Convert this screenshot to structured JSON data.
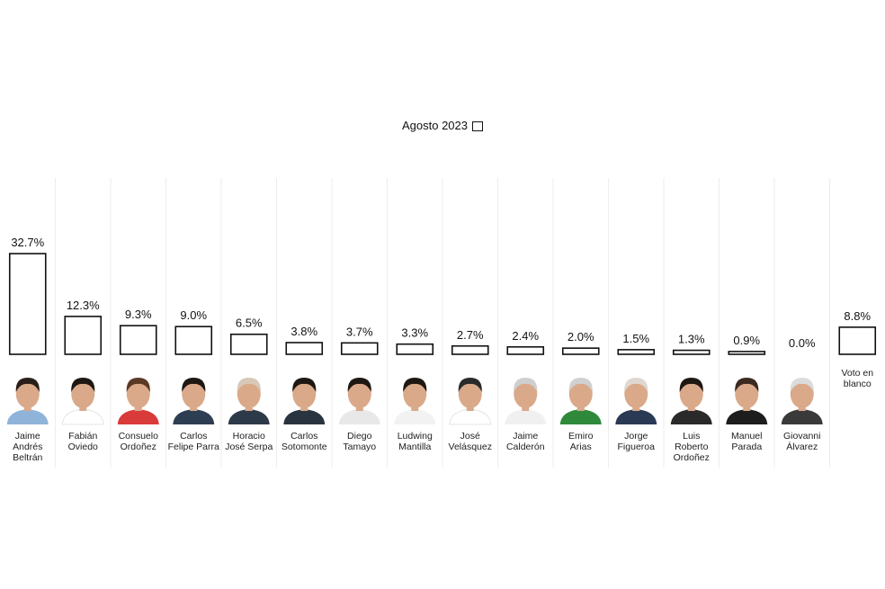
{
  "chart_data": {
    "type": "bar",
    "legend": {
      "position": "top-center"
    },
    "series": [
      {
        "name": "Agosto 2023",
        "values": [
          32.7,
          12.3,
          9.3,
          9.0,
          6.5,
          3.8,
          3.7,
          3.3,
          2.7,
          2.4,
          2.0,
          1.5,
          1.3,
          0.9,
          0.0,
          8.8
        ],
        "labels": [
          "32.7%",
          "12.3%",
          "9.3%",
          "9.0%",
          "6.5%",
          "3.8%",
          "3.7%",
          "3.3%",
          "2.7%",
          "2.4%",
          "2.0%",
          "1.5%",
          "1.3%",
          "0.9%",
          "0.0%",
          "8.8%"
        ]
      }
    ],
    "categories": [
      [
        "Jaime",
        "Andrés",
        "Beltrán"
      ],
      [
        "Fabián",
        "Oviedo"
      ],
      [
        "Consuelo",
        "Ordoñez"
      ],
      [
        "Carlos",
        "Felipe Parra"
      ],
      [
        "Horacio",
        "José Serpa"
      ],
      [
        "Carlos",
        "Sotomonte"
      ],
      [
        "Diego",
        "Tamayo"
      ],
      [
        "Ludwing",
        "Mantilla"
      ],
      [
        "José",
        "Velásquez"
      ],
      [
        "Jaime",
        "Calderón"
      ],
      [
        "Emiro",
        "Arias"
      ],
      [
        "Jorge",
        "Figueroa"
      ],
      [
        "Luis",
        "Roberto",
        "Ordoñez"
      ],
      [
        "Manuel",
        "Parada"
      ],
      [
        "Giovanni",
        "Álvarez"
      ],
      [
        "Voto en",
        "blanco"
      ]
    ],
    "photos": {
      "shirt_colors": [
        "#8fb3d9",
        "#ffffff",
        "#d93a3a",
        "#2e3e52",
        "#2d3a4a",
        "#2a3440",
        "#e8e8e8",
        "#f2f2f2",
        "#ffffff",
        "#f0f0f0",
        "#2e8a3a",
        "#2a3a55",
        "#2a2a2a",
        "#1d1d1d",
        "#3a3a3a"
      ],
      "hair_colors": [
        "#2a1e18",
        "#1e1712",
        "#5a3a25",
        "#1e1712",
        "#d8c8b8",
        "#1e1712",
        "#1e1712",
        "#1e1712",
        "#2a2a2a",
        "#cfcfcf",
        "#d0d0d0",
        "#e0d8d0",
        "#1e1712",
        "#3a2a20",
        "#dcdcdc"
      ]
    },
    "ylim": [
      0,
      33
    ]
  }
}
